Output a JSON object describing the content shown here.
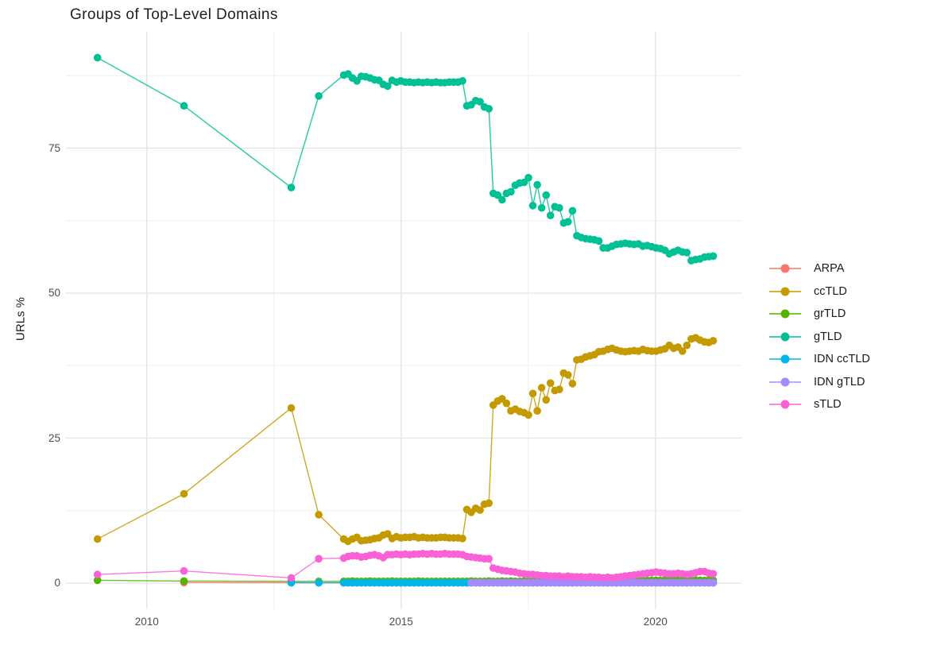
{
  "chart_data": {
    "type": "scatter",
    "title": "Groups of Top-Level Domains",
    "ylabel": "URLs %",
    "xlabel": "",
    "grid": true,
    "legend_position": "right",
    "background": "#ffffff",
    "grid_major_color": "#e3e3e3",
    "grid_minor_color": "#efefef",
    "x_ticks": [
      2010,
      2015,
      2020
    ],
    "x_tick_labels": [
      "2010",
      "2015",
      "2020"
    ],
    "x_minor_ticks": [
      2012.5,
      2017.5
    ],
    "y_ticks": [
      0,
      25,
      50,
      75
    ],
    "y_tick_labels": [
      "0",
      "25",
      "50",
      "75"
    ],
    "y_minor_ticks": [
      12.5,
      37.5,
      62.5,
      87.5
    ],
    "x_range_years": [
      2008.41,
      2021.69
    ],
    "y_range": [
      -4.52,
      95.07
    ],
    "x_monthly_start": 2013.87,
    "x_monthly_step": 0.0865,
    "x_monthly_count": 85,
    "series": [
      {
        "name": "ARPA",
        "color": "#F8766D",
        "early": [
          [
            2010.73,
            0.1
          ],
          [
            2012.84,
            0.08
          ],
          [
            2013.38,
            0.05
          ]
        ],
        "monthly_const": 0.05,
        "from_index": 0
      },
      {
        "name": "ccTLD",
        "color": "#C49A00",
        "early": [
          [
            2009.03,
            7.6
          ],
          [
            2010.73,
            15.4
          ],
          [
            2012.84,
            30.2
          ],
          [
            2013.38,
            11.8
          ]
        ],
        "monthly": [
          7.6,
          7.2,
          7.6,
          7.9,
          7.3,
          7.4,
          7.5,
          7.7,
          7.8,
          8.3,
          8.5,
          7.7,
          8.0,
          7.8,
          7.9,
          7.9,
          8.0,
          7.8,
          7.9,
          7.8,
          7.8,
          7.8,
          7.9,
          7.9,
          7.8,
          7.8,
          7.8,
          7.7,
          12.7,
          12.2,
          12.9,
          12.6,
          13.6,
          13.8,
          30.7,
          31.4,
          31.8,
          31.0,
          29.7,
          30.0,
          29.6,
          29.4,
          29.0,
          32.7,
          29.7,
          33.7,
          31.6,
          34.5,
          33.2,
          33.4,
          36.2,
          35.9,
          34.4,
          38.5,
          38.6,
          39.0,
          39.2,
          39.4,
          39.9,
          40.0,
          40.3,
          40.5,
          40.2,
          40.0,
          39.9,
          40.0,
          40.1,
          40.0,
          40.3,
          40.1,
          40.0,
          40.0,
          40.2,
          40.4,
          41.0,
          40.5,
          40.7,
          40.0,
          41.0,
          42.1,
          42.3,
          41.9,
          41.6,
          41.5,
          41.8
        ]
      },
      {
        "name": "grTLD",
        "color": "#53B400",
        "early": [
          [
            2009.03,
            0.5
          ],
          [
            2010.73,
            0.35
          ],
          [
            2012.84,
            0.3
          ],
          [
            2013.38,
            0.3
          ]
        ],
        "monthly": [
          0.3,
          0.3,
          0.35,
          0.3,
          0.3,
          0.3,
          0.35,
          0.3,
          0.3,
          0.3,
          0.3,
          0.35,
          0.3,
          0.3,
          0.3,
          0.3,
          0.3,
          0.35,
          0.3,
          0.3,
          0.3,
          0.3,
          0.3,
          0.3,
          0.3,
          0.3,
          0.3,
          0.3,
          0.3,
          0.35,
          0.3,
          0.3,
          0.3,
          0.35,
          0.3,
          0.3,
          0.35,
          0.3,
          0.35,
          0.3,
          0.3,
          0.35,
          0.3,
          0.35,
          0.3,
          0.35,
          0.35,
          0.3,
          0.35,
          0.35,
          0.4,
          0.35,
          0.4,
          0.35,
          0.4,
          0.4,
          0.35,
          0.4,
          0.4,
          0.4,
          0.4,
          0.45,
          0.4,
          0.4,
          0.45,
          0.4,
          0.45,
          0.45,
          0.4,
          0.45,
          0.45,
          0.5,
          0.45,
          0.5,
          0.5,
          0.45,
          0.5,
          0.5,
          0.45,
          0.5,
          0.5,
          0.5,
          0.45,
          0.5,
          0.5
        ]
      },
      {
        "name": "gTLD",
        "color": "#00C094",
        "early": [
          [
            2009.03,
            90.6
          ],
          [
            2010.73,
            82.3
          ],
          [
            2012.84,
            68.2
          ],
          [
            2013.38,
            84.0
          ]
        ],
        "monthly": [
          87.6,
          87.8,
          87.1,
          86.6,
          87.4,
          87.3,
          87.1,
          86.8,
          86.7,
          86.0,
          85.7,
          86.7,
          86.4,
          86.6,
          86.4,
          86.4,
          86.3,
          86.4,
          86.3,
          86.4,
          86.3,
          86.4,
          86.3,
          86.3,
          86.4,
          86.4,
          86.4,
          86.6,
          82.3,
          82.5,
          83.2,
          83.0,
          82.1,
          81.8,
          67.2,
          66.9,
          66.1,
          67.2,
          67.5,
          68.6,
          69.0,
          69.1,
          69.9,
          65.1,
          68.7,
          64.7,
          66.9,
          63.4,
          64.9,
          64.7,
          62.1,
          62.3,
          64.2,
          59.9,
          59.6,
          59.4,
          59.3,
          59.2,
          59.0,
          57.8,
          57.8,
          58.1,
          58.4,
          58.5,
          58.6,
          58.5,
          58.4,
          58.5,
          58.1,
          58.2,
          58.0,
          57.8,
          57.7,
          57.4,
          56.8,
          57.1,
          57.4,
          57.1,
          57.0,
          55.6,
          55.8,
          55.9,
          56.2,
          56.3,
          56.4
        ]
      },
      {
        "name": "IDN ccTLD",
        "color": "#00B6EB",
        "early": [
          [
            2012.84,
            0.05
          ],
          [
            2013.38,
            0.05
          ]
        ],
        "monthly_const": 0.05,
        "from_index": 0
      },
      {
        "name": "IDN gTLD",
        "color": "#A58AFF",
        "early": [],
        "monthly_const": 0.1,
        "from_index": 29
      },
      {
        "name": "sTLD",
        "color": "#FB61D7",
        "early": [
          [
            2009.03,
            1.5
          ],
          [
            2010.73,
            2.1
          ],
          [
            2012.84,
            0.9
          ],
          [
            2013.38,
            4.2
          ]
        ],
        "monthly": [
          4.3,
          4.6,
          4.7,
          4.7,
          4.5,
          4.6,
          4.8,
          4.9,
          4.7,
          4.4,
          4.9,
          4.9,
          5.0,
          4.9,
          5.0,
          4.9,
          5.0,
          5.0,
          5.1,
          5.0,
          5.1,
          5.0,
          5.0,
          5.1,
          5.0,
          5.0,
          5.0,
          4.9,
          4.6,
          4.5,
          4.4,
          4.3,
          4.2,
          4.2,
          2.6,
          2.4,
          2.2,
          2.1,
          2.0,
          1.9,
          1.7,
          1.6,
          1.5,
          1.5,
          1.4,
          1.3,
          1.3,
          1.2,
          1.2,
          1.2,
          1.1,
          1.2,
          1.1,
          1.1,
          1.1,
          1.0,
          1.1,
          1.0,
          1.0,
          0.9,
          1.0,
          0.9,
          1.0,
          1.1,
          1.2,
          1.3,
          1.4,
          1.5,
          1.6,
          1.7,
          1.8,
          1.9,
          1.8,
          1.7,
          1.6,
          1.6,
          1.7,
          1.6,
          1.5,
          1.6,
          1.8,
          2.0,
          2.0,
          1.7,
          1.6
        ]
      }
    ]
  }
}
